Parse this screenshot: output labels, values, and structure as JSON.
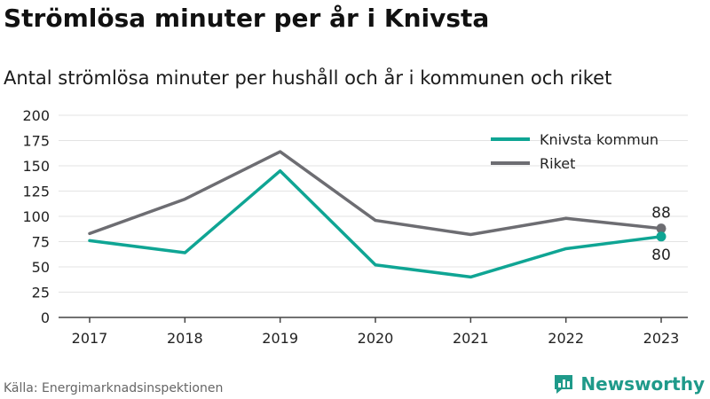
{
  "header": {
    "title": "Strömlösa minuter per år i Knivsta",
    "subtitle": "Antal strömlösa minuter per hushåll och år i kommunen och riket"
  },
  "footer": {
    "source": "Källa: Energimarknadsinspektionen",
    "brand": "Newsworthy",
    "brand_icon": "newsworthy-logo-icon"
  },
  "colors": {
    "knivsta": "#0fa594",
    "riket": "#6d6d72",
    "grid": "#e3e3e3",
    "brand": "#1f9a8a"
  },
  "chart_data": {
    "type": "line",
    "title": "",
    "xlabel": "",
    "ylabel": "",
    "categories": [
      "2017",
      "2018",
      "2019",
      "2020",
      "2021",
      "2022",
      "2023"
    ],
    "ylim": [
      0,
      200
    ],
    "yticks": [
      "0",
      "25",
      "50",
      "75",
      "100",
      "125",
      "150",
      "175",
      "200"
    ],
    "grid": true,
    "legend": "top-right",
    "series": [
      {
        "name": "Knivsta kommun",
        "values": [
          76,
          64,
          145,
          52,
          40,
          68,
          80
        ],
        "end_label": "80"
      },
      {
        "name": "Riket",
        "values": [
          83,
          117,
          164,
          96,
          82,
          98,
          88
        ],
        "end_label": "88"
      }
    ]
  }
}
